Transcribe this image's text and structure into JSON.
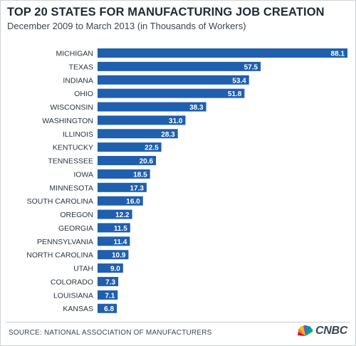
{
  "chart_data": {
    "type": "bar",
    "orientation": "horizontal",
    "title": "TOP 20 STATES FOR MANUFACTURING JOB CREATION",
    "subtitle": "December 2009 to March 2013 (in Thousands of Workers)",
    "categories": [
      "MICHIGAN",
      "TEXAS",
      "INDIANA",
      "OHIO",
      "WISCONSIN",
      "WASHINGTON",
      "ILLINOIS",
      "KENTUCKY",
      "TENNESSEE",
      "IOWA",
      "MINNESOTA",
      "SOUTH CAROLINA",
      "OREGON",
      "GEORGIA",
      "PENNSYLVANIA",
      "NORTH CAROLINA",
      "UTAH",
      "COLORADO",
      "LOUISIANA",
      "KANSAS"
    ],
    "values": [
      88.1,
      57.5,
      53.4,
      51.8,
      38.3,
      31.0,
      28.3,
      22.5,
      20.6,
      18.5,
      17.3,
      16.0,
      12.2,
      11.5,
      11.4,
      10.9,
      9.0,
      7.3,
      7.1,
      6.8
    ],
    "value_labels": [
      "88.1",
      "57.5",
      "53.4",
      "51.8",
      "38.3",
      "31.0",
      "28.3",
      "22.5",
      "20.6",
      "18.5",
      "17.3",
      "16.0",
      "12.2",
      "11.5",
      "11.4",
      "10.9",
      "9.0",
      "7.3",
      "7.1",
      "6.8"
    ],
    "xlim": [
      0,
      88.1
    ],
    "grid": false,
    "legend": "none",
    "bar_color": "#1f5fae"
  },
  "footer": {
    "source": "SOURCE: NATIONAL ASSOCIATION OF MANUFACTURERS",
    "logo_text": "CNBC"
  },
  "icons": {
    "logo": "peacock-icon"
  }
}
